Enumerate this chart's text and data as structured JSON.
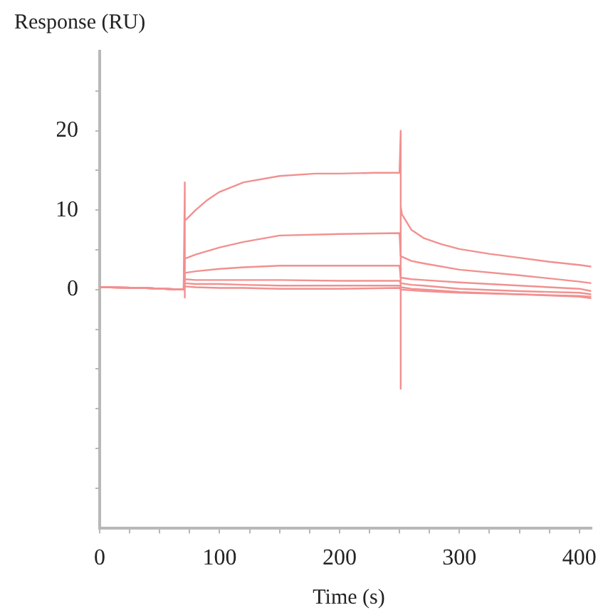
{
  "chart_data": {
    "type": "line",
    "ylabel": "Response (RU)",
    "xlabel": "Time (s)",
    "xlim": [
      0,
      410
    ],
    "ylim": [
      -30,
      30
    ],
    "xticks": [
      0,
      {
        "value": 25,
        "label": null
      },
      {
        "value": 50,
        "label": null
      },
      {
        "value": 75,
        "label": null
      },
      100,
      {
        "value": 125,
        "label": null
      },
      {
        "value": 150,
        "label": null
      },
      {
        "value": 175,
        "label": null
      },
      200,
      {
        "value": 225,
        "label": null
      },
      {
        "value": 250,
        "label": null
      },
      {
        "value": 275,
        "label": null
      },
      300,
      {
        "value": 325,
        "label": null
      },
      {
        "value": 350,
        "label": null
      },
      {
        "value": 375,
        "label": null
      },
      400
    ],
    "yticks": [
      {
        "value": -25,
        "label": null
      },
      {
        "value": -20,
        "label": null
      },
      {
        "value": -15,
        "label": null
      },
      {
        "value": -10,
        "label": null
      },
      {
        "value": -5,
        "label": null
      },
      0,
      {
        "value": 5,
        "label": null
      },
      10,
      {
        "value": 15,
        "label": null
      },
      20,
      {
        "value": 25,
        "label": null
      }
    ],
    "grid": false,
    "legend": false,
    "marker": "none",
    "line_style": "solid",
    "series": [
      {
        "color": "#f29090",
        "x": [
          0,
          35,
          70,
          71,
          71,
          71,
          72,
          80,
          90,
          100,
          120,
          150,
          180,
          200,
          230,
          250,
          251,
          251,
          251,
          252,
          260,
          270,
          285,
          300,
          325,
          350,
          375,
          400,
          410
        ],
        "values": [
          0.3,
          0.2,
          0.0,
          13.5,
          -1,
          8.8,
          8.8,
          10,
          11.3,
          12.3,
          13.5,
          14.3,
          14.6,
          14.6,
          14.7,
          14.7,
          20,
          -12.5,
          10.5,
          9.5,
          7.5,
          6.5,
          5.7,
          5.1,
          4.5,
          4.0,
          3.5,
          3.1,
          2.9
        ]
      },
      {
        "color": "#f29090",
        "x": [
          0,
          35,
          70,
          71,
          80,
          100,
          120,
          150,
          200,
          250,
          251,
          260,
          270,
          300,
          350,
          400,
          410
        ],
        "values": [
          0.3,
          0.2,
          0.0,
          3.9,
          4.4,
          5.3,
          6.0,
          6.8,
          7.0,
          7.1,
          4.2,
          3.6,
          3.3,
          2.5,
          1.8,
          1.0,
          0.8
        ]
      },
      {
        "color": "#f29090",
        "x": [
          0,
          35,
          70,
          71,
          80,
          100,
          120,
          150,
          200,
          250,
          251,
          260,
          270,
          300,
          350,
          400,
          410
        ],
        "values": [
          0.3,
          0.2,
          0.0,
          2.1,
          2.3,
          2.6,
          2.8,
          3.0,
          3.0,
          3.0,
          1.5,
          1.3,
          1.2,
          0.9,
          0.5,
          0.1,
          -0.2
        ]
      },
      {
        "color": "#f29090",
        "x": [
          0,
          35,
          70,
          71,
          80,
          100,
          120,
          150,
          200,
          250,
          251,
          260,
          270,
          300,
          350,
          400,
          410
        ],
        "values": [
          0.3,
          0.2,
          0.0,
          1.3,
          1.2,
          1.2,
          1.2,
          1.2,
          1.1,
          1.1,
          0.8,
          0.6,
          0.5,
          0.1,
          -0.2,
          -0.4,
          -0.6
        ]
      },
      {
        "color": "#f29090",
        "x": [
          0,
          35,
          70,
          71,
          80,
          100,
          120,
          150,
          200,
          250,
          251,
          260,
          270,
          300,
          350,
          400,
          410
        ],
        "values": [
          0.3,
          0.2,
          0.0,
          0.8,
          0.7,
          0.7,
          0.6,
          0.5,
          0.5,
          0.5,
          0.3,
          0.1,
          0.0,
          -0.3,
          -0.6,
          -0.9,
          -1.1
        ]
      },
      {
        "color": "#f29090",
        "x": [
          0,
          35,
          70,
          71,
          80,
          100,
          120,
          150,
          200,
          250,
          251,
          260,
          270,
          300,
          350,
          400,
          410
        ],
        "values": [
          0.3,
          0.2,
          0.0,
          0.4,
          0.3,
          0.2,
          0.2,
          0.1,
          0.1,
          0.2,
          0.0,
          -0.1,
          -0.2,
          -0.4,
          -0.6,
          -0.8,
          -0.9
        ]
      }
    ]
  }
}
